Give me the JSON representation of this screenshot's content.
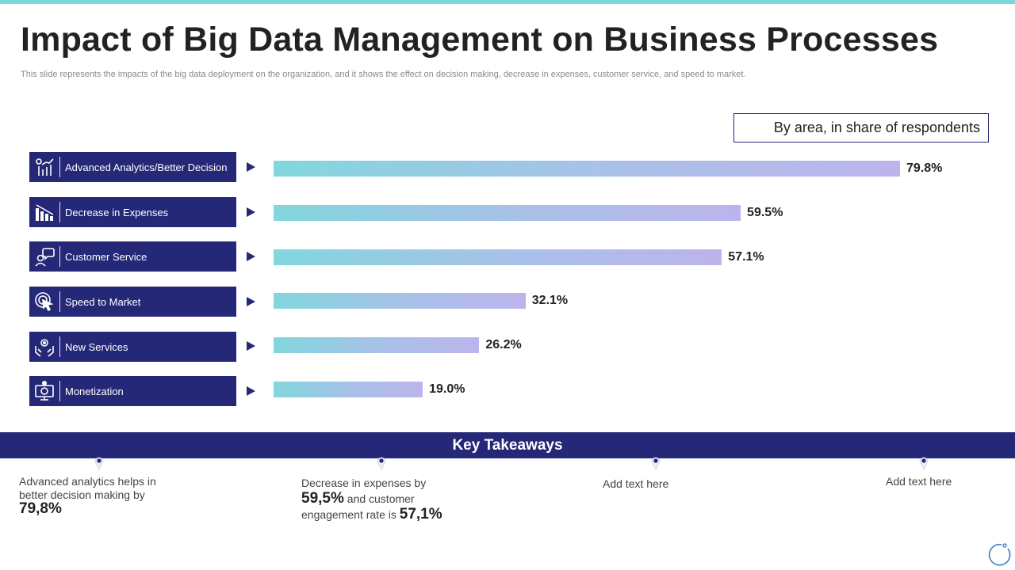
{
  "title": "Impact of Big Data Management on Business Processes",
  "subtitle": "This slide represents the impacts of the big data deployment on the organization, and it shows the effect on decision making, decrease in expenses, customer service, and speed to market.",
  "legend_label": "By area, in share of respondents",
  "chart_data": {
    "type": "bar",
    "orientation": "horizontal",
    "categories": [
      "Advanced Analytics/Better Decision",
      "Decrease in Expenses",
      "Customer Service",
      "Speed to Market",
      "New Services",
      "Monetization"
    ],
    "series": [
      {
        "values": [
          79.8,
          59.5,
          57.1,
          32.1,
          26.2,
          19.0
        ]
      }
    ],
    "data_labels": [
      "79.8%",
      "59.5%",
      "57.1%",
      "32.1%",
      "26.2%",
      "19.0%"
    ],
    "xlim": [
      0,
      100
    ],
    "grid": false,
    "colors": {
      "bar_start": "#82d7dd",
      "bar_end": "#bcb4ec",
      "category_bg": "#242877"
    }
  },
  "category_icons": [
    "analytics-icon",
    "expenses-chart-icon",
    "customer-chat-icon",
    "target-cursor-icon",
    "hands-gear-icon",
    "monitor-dollar-icon"
  ],
  "key_takeaways": {
    "heading": "Key Takeaways",
    "items": [
      {
        "pre": "Advanced analytics helps in better decision making by",
        "big": "79,8%"
      },
      {
        "pre": "Decrease in expenses by",
        "big1": "59,5%",
        "mid": "and customer engagement rate is",
        "big2": "57,1%"
      },
      {
        "text": "Add text here"
      },
      {
        "text": "Add text here"
      }
    ]
  },
  "colors": {
    "accent": "#242877",
    "top_strip": "#7fd6dc"
  }
}
